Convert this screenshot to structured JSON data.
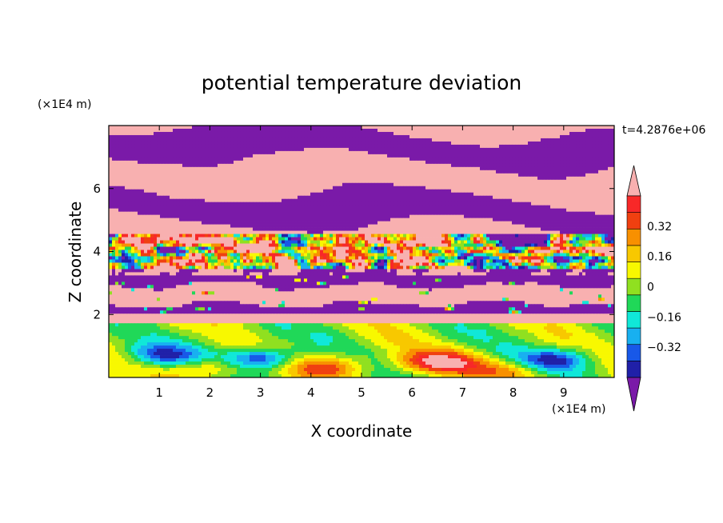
{
  "chart_data": {
    "type": "heatmap",
    "title": "potential temperature deviation",
    "xlabel": "X coordinate",
    "ylabel": "Z coordinate",
    "x_unit": "(×1E4 m)",
    "y_unit": "(×1E4 m)",
    "time_label": "t=4.2876e+06",
    "xlim": [
      0,
      10
    ],
    "ylim": [
      0,
      8
    ],
    "x_ticks": [
      1,
      2,
      3,
      4,
      5,
      6,
      7,
      8,
      9
    ],
    "y_ticks": [
      2,
      4,
      6
    ],
    "colorbar": {
      "levels": [
        -0.48,
        -0.4,
        -0.32,
        -0.24,
        -0.16,
        -0.08,
        0,
        0.08,
        0.16,
        0.24,
        0.32,
        0.4,
        0.48
      ],
      "colors": [
        "#7a1aa8",
        "#2020a8",
        "#1858e8",
        "#18b0f0",
        "#10e8d8",
        "#20d858",
        "#90e020",
        "#f8f800",
        "#f8c800",
        "#f89000",
        "#f04010",
        "#f82828",
        "#f8b0b0"
      ],
      "tick_labels": [
        "0.32",
        "0.16",
        "0",
        "−0.16",
        "−0.32"
      ],
      "tick_values": [
        0.32,
        0.16,
        0,
        -0.16,
        -0.32
      ],
      "extend": "both"
    },
    "field_description_rows": [
      {
        "z_range": [
          5.9,
          8.0
        ],
        "pattern": "alternating pink (≥0.48) and purple (≤−0.48) stratified bands"
      },
      {
        "z_range": [
          3.2,
          4.6
        ],
        "pattern": "turbulent mixed layer with full colour spectrum"
      },
      {
        "z_range": [
          2.0,
          3.2
        ],
        "pattern": "layered pink/purple with small mixed patches"
      },
      {
        "z_range": [
          0.0,
          2.0
        ],
        "pattern": "near-neutral green/cyan with blue eddies and orange plumes"
      }
    ]
  }
}
